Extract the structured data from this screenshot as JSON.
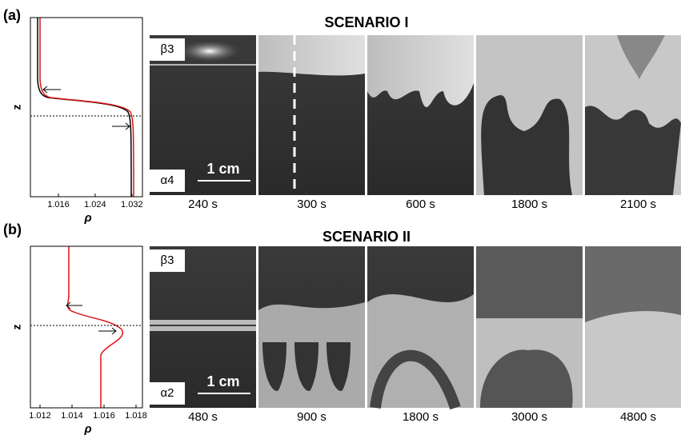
{
  "panels": [
    {
      "label": "(a)",
      "title": "SCENARIO I",
      "layer_top": "β3",
      "layer_bottom": "α4",
      "scale_bar": "1 cm",
      "profile": {
        "y_label": "z",
        "x_label": "ρ",
        "xlim": [
          1.0099,
          1.0343
        ],
        "xticks": [
          1.016,
          1.024,
          1.032
        ]
      },
      "times": [
        "240 s",
        "300 s",
        "600 s",
        "1800 s",
        "2100 s"
      ]
    },
    {
      "label": "(b)",
      "title": "SCENARIO II",
      "layer_top": "β3",
      "layer_bottom": "α2",
      "scale_bar": "1 cm",
      "profile": {
        "y_label": "z",
        "x_label": "ρ",
        "xlim": [
          1.0114,
          1.0184
        ],
        "xticks": [
          1.012,
          1.014,
          1.016,
          1.018
        ]
      },
      "times": [
        "480 s",
        "900 s",
        "1800 s",
        "3000 s",
        "4800 s"
      ]
    }
  ]
}
